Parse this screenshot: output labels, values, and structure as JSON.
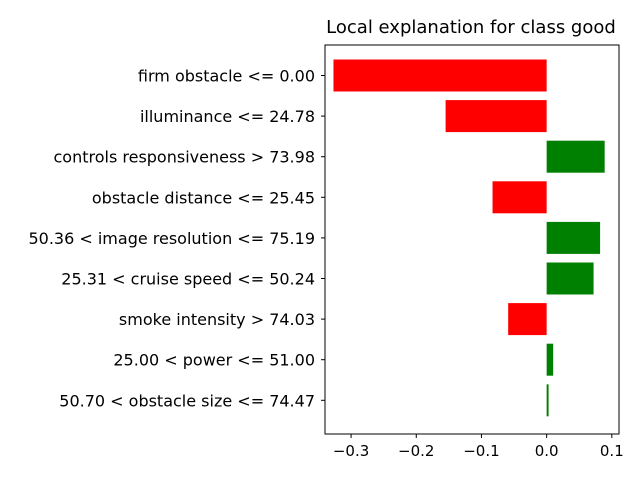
{
  "chart_data": {
    "type": "bar",
    "orientation": "horizontal",
    "title": "Local explanation for class good",
    "xlabel": "",
    "ylabel": "",
    "xlim": [
      -0.34,
      0.111
    ],
    "xticks": [
      -0.3,
      -0.2,
      -0.1,
      0.0,
      0.1
    ],
    "xtick_labels": [
      "−0.3",
      "−0.2",
      "−0.1",
      "0.0",
      "0.1"
    ],
    "categories": [
      "firm obstacle <= 0.00",
      "illuminance <= 24.78",
      "controls responsiveness > 73.98",
      "obstacle distance <= 25.45",
      "50.36 < image resolution <= 75.19",
      "25.31 < cruise speed <= 50.24",
      "smoke intensity > 74.03",
      "25.00 < power <= 51.00",
      "50.70 < obstacle size <= 74.47"
    ],
    "values": [
      -0.327,
      -0.155,
      0.089,
      -0.083,
      0.082,
      0.072,
      -0.059,
      0.01,
      0.003
    ],
    "colors": {
      "positive": "#008000",
      "negative": "#ff0000"
    },
    "grid": false,
    "legend": "none"
  }
}
